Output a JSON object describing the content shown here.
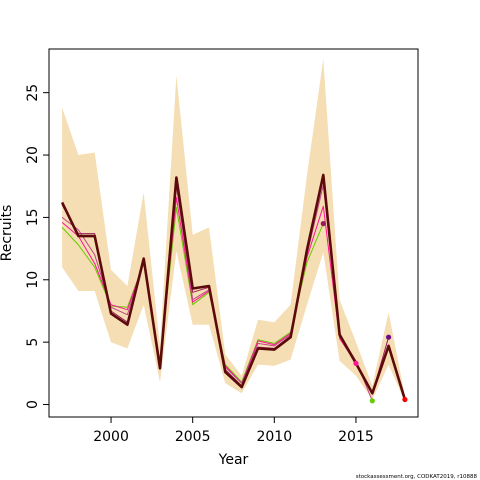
{
  "chart_data": {
    "type": "line",
    "xlabel": "Year",
    "ylabel": "Recruits",
    "xlim": [
      1996.2,
      2018.8
    ],
    "ylim": [
      -1.0,
      28.5
    ],
    "x_ticks": [
      2000,
      2005,
      2010,
      2015
    ],
    "y_ticks": [
      0,
      5,
      10,
      15,
      20,
      25
    ],
    "grid": false,
    "legend": "none",
    "footnote": "stockassessment.org, CODKAT2019, r10888",
    "colors": {
      "band": "#f5deb3",
      "main": "#5c0a0a",
      "retro": [
        "#9b1b5a",
        "#c0458a",
        "#ff1493",
        "#66cc00",
        "#6a0d8a",
        "#ff0000"
      ]
    },
    "confidence_band": {
      "x": [
        1997,
        1998,
        1999,
        2000,
        2001,
        2002,
        2003,
        2004,
        2005,
        2006,
        2007,
        2008,
        2009,
        2010,
        2011,
        2012,
        2013,
        2014,
        2015,
        2016,
        2017,
        2018
      ],
      "lower": [
        11.0,
        9.1,
        9.1,
        5.0,
        4.5,
        8.0,
        1.8,
        12.3,
        6.4,
        6.4,
        1.7,
        0.9,
        3.2,
        3.1,
        3.6,
        8.0,
        12.2,
        3.5,
        2.3,
        0.4,
        3.2,
        0.2
      ],
      "upper": [
        23.8,
        20.0,
        20.2,
        10.8,
        9.5,
        17.0,
        4.6,
        26.4,
        13.6,
        14.2,
        4.0,
        2.3,
        6.8,
        6.6,
        8.0,
        18.4,
        27.7,
        8.4,
        5.0,
        1.5,
        7.4,
        0.7
      ]
    },
    "series": [
      {
        "x": [
          1997,
          1998,
          1999,
          2000,
          2001,
          2002,
          2003,
          2004,
          2005,
          2006,
          2007,
          2008,
          2009,
          2010,
          2011,
          2012,
          2013,
          2014,
          2015,
          2016,
          2017,
          2018
        ],
        "values": [
          16.2,
          13.5,
          13.5,
          7.3,
          6.4,
          11.7,
          2.9,
          18.2,
          9.3,
          9.5,
          2.6,
          1.4,
          4.5,
          4.4,
          5.4,
          12.4,
          18.4,
          5.6,
          3.3,
          0.9,
          4.7,
          0.4
        ]
      },
      {
        "x": [
          1997,
          1998,
          1999,
          2000,
          2001,
          2002,
          2003,
          2004,
          2005,
          2006,
          2007,
          2008,
          2009,
          2010,
          2011,
          2012,
          2013,
          2014,
          2015,
          2016,
          2017
        ],
        "values": [
          16.0,
          13.7,
          13.7,
          7.5,
          6.6,
          11.6,
          3.0,
          18.0,
          9.0,
          9.4,
          2.8,
          1.5,
          4.6,
          4.5,
          5.5,
          12.6,
          18.2,
          5.7,
          3.4,
          0.9,
          5.4
        ]
      },
      {
        "x": [
          1997,
          1998,
          1999,
          2000,
          2001,
          2002,
          2003,
          2004,
          2005,
          2006,
          2007,
          2008,
          2009,
          2010,
          2011,
          2012,
          2013,
          2014,
          2015,
          2016
        ],
        "values": [
          15.0,
          14.0,
          12.0,
          7.8,
          7.2,
          11.5,
          3.2,
          17.5,
          8.4,
          9.2,
          3.0,
          1.7,
          4.9,
          4.7,
          5.6,
          12.0,
          17.6,
          5.6,
          3.5,
          0.3
        ]
      },
      {
        "x": [
          1997,
          1998,
          1999,
          2000,
          2001,
          2002,
          2003,
          2004,
          2005,
          2006,
          2007,
          2008,
          2009,
          2010,
          2011,
          2012,
          2013,
          2014,
          2015
        ],
        "values": [
          14.6,
          13.5,
          11.3,
          8.0,
          7.6,
          11.4,
          3.3,
          16.6,
          8.2,
          9.1,
          3.1,
          1.7,
          5.1,
          4.8,
          5.7,
          11.8,
          15.9,
          5.3,
          3.3
        ]
      },
      {
        "x": [
          1997,
          1998,
          1999,
          2000,
          2001,
          2002,
          2003,
          2004,
          2005,
          2006,
          2007,
          2008,
          2009,
          2010,
          2011,
          2012,
          2013
        ],
        "values": [
          14.2,
          12.8,
          11.0,
          7.9,
          7.8,
          11.3,
          3.4,
          15.8,
          8.0,
          9.0,
          3.2,
          1.8,
          5.2,
          4.9,
          5.8,
          11.4,
          14.5
        ]
      }
    ],
    "terminal_points": [
      {
        "x": 2013,
        "y": 14.5,
        "color": "#9b1b5a"
      },
      {
        "x": 2015,
        "y": 3.3,
        "color": "#ff1493"
      },
      {
        "x": 2016,
        "y": 0.3,
        "color": "#66cc00"
      },
      {
        "x": 2017,
        "y": 5.4,
        "color": "#6a0d8a"
      },
      {
        "x": 2018,
        "y": 0.4,
        "color": "#ff0000"
      }
    ]
  }
}
